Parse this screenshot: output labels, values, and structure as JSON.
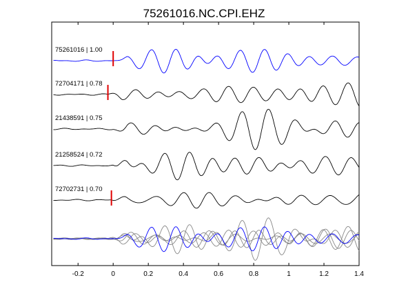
{
  "chart_data": {
    "type": "line",
    "title": "75261016.NC.CPI.EHZ",
    "xlabel": "",
    "ylabel": "",
    "xlim": [
      -0.35,
      1.4
    ],
    "x_ticks": [
      -0.2,
      0,
      0.2,
      0.4,
      0.6,
      0.8,
      1,
      1.2,
      1.4
    ],
    "x_tick_labels": [
      "-0.2",
      "0",
      "0.2",
      "0.4",
      "0.6",
      "0.8",
      "1",
      "1.2",
      "1.4"
    ],
    "grid": false,
    "colors": {
      "reference": "#0000ff",
      "trace": "#000000",
      "overlay": "#888888",
      "pick": "#e00000"
    },
    "series": [
      {
        "name": "75261016 | 1.00",
        "pick_x": 0.0,
        "color": "#0000ff"
      },
      {
        "name": "72704171 | 0.78",
        "pick_x": -0.03,
        "color": "#000000"
      },
      {
        "name": "21438591 | 0.75",
        "pick_x": null,
        "color": "#000000"
      },
      {
        "name": "21258524 | 0.72",
        "pick_x": null,
        "color": "#000000"
      },
      {
        "name": "72702731 | 0.70",
        "pick_x": -0.01,
        "color": "#000000"
      }
    ],
    "stacked_overlay": true
  }
}
